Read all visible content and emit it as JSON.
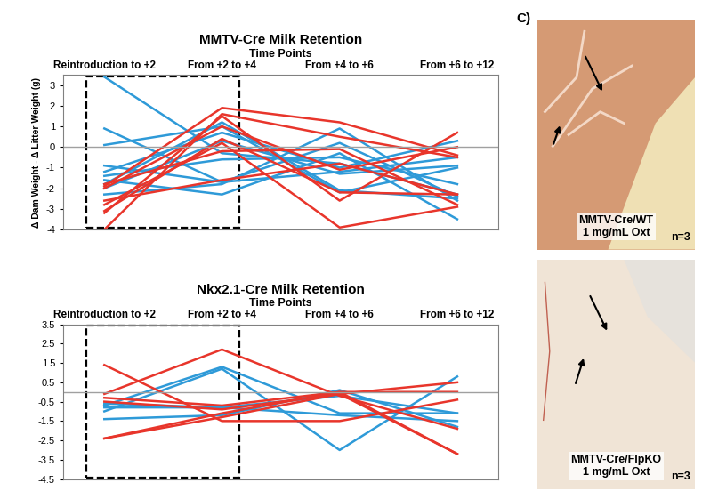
{
  "chart_data": [
    {
      "type": "line",
      "title": "MMTV-Cre Milk Retention",
      "x_label": "Time Points",
      "y_label": "Δ Dam Weight - Δ Litter Weight (g)",
      "categories": [
        "Reintroduction to +2",
        "From +2 to +4",
        "From +4 to +6",
        "From +6 to +12"
      ],
      "ylim": [
        -4,
        3.5
      ],
      "yticks": [
        -4,
        -3,
        -2,
        -1,
        0,
        1,
        2,
        3
      ],
      "series": [
        {
          "color": "#2e9ad8",
          "values": [
            3.4,
            -0.3,
            -0.8,
            -2.3
          ]
        },
        {
          "color": "#2e9ad8",
          "values": [
            0.9,
            -1.7,
            -1.2,
            -0.5
          ]
        },
        {
          "color": "#2e9ad8",
          "values": [
            0.1,
            1.0,
            -2.2,
            -1.0
          ]
        },
        {
          "color": "#2e9ad8",
          "values": [
            -0.9,
            -1.7,
            0.2,
            -2.4
          ]
        },
        {
          "color": "#2e9ad8",
          "values": [
            -1.2,
            0.7,
            -1.0,
            0.3
          ]
        },
        {
          "color": "#2e9ad8",
          "values": [
            -1.6,
            -2.3,
            -0.3,
            -3.5
          ]
        },
        {
          "color": "#2e9ad8",
          "values": [
            -2.0,
            0.3,
            -1.3,
            -0.9
          ]
        },
        {
          "color": "#2e9ad8",
          "values": [
            -1.8,
            1.2,
            -2.1,
            -2.5
          ]
        },
        {
          "color": "#2e9ad8",
          "values": [
            -2.3,
            -1.8,
            0.9,
            -2.6
          ]
        },
        {
          "color": "#2e9ad8",
          "values": [
            -1.4,
            -0.6,
            -0.5,
            -1.8
          ]
        },
        {
          "color": "#e8352b",
          "values": [
            -1.9,
            1.9,
            1.2,
            -0.4
          ]
        },
        {
          "color": "#e8352b",
          "values": [
            -4.0,
            1.6,
            0.5,
            -0.5
          ]
        },
        {
          "color": "#e8352b",
          "values": [
            -3.2,
            1.5,
            -2.6,
            0.7
          ]
        },
        {
          "color": "#e8352b",
          "values": [
            -2.8,
            0.2,
            -3.9,
            -2.9
          ]
        },
        {
          "color": "#e8352b",
          "values": [
            -2.6,
            -1.6,
            -0.8,
            -2.3
          ]
        },
        {
          "color": "#e8352b",
          "values": [
            -1.8,
            -0.2,
            -0.1,
            -2.8
          ]
        },
        {
          "color": "#e8352b",
          "values": [
            -3.1,
            0.4,
            -2.2,
            -2.3
          ]
        },
        {
          "color": "#e8352b",
          "values": [
            -2.0,
            1.0,
            -1.1,
            0.0
          ]
        }
      ]
    },
    {
      "type": "line",
      "title": "Nkx2.1-Cre Milk Retention",
      "x_label": "Time Points",
      "categories": [
        "Reintroduction to +2",
        "From +2 to +4",
        "From +4 to +6",
        "From +6 to +12"
      ],
      "ylim": [
        -4.5,
        3.5
      ],
      "yticks": [
        -4.5,
        -3.5,
        -2.5,
        -1.5,
        -0.5,
        0.5,
        1.5,
        2.5,
        3.5
      ],
      "series": [
        {
          "color": "#2e9ad8",
          "values": [
            -0.7,
            1.3,
            -1.1,
            -1.1
          ]
        },
        {
          "color": "#2e9ad8",
          "values": [
            -1.0,
            1.2,
            -3.0,
            0.8
          ]
        },
        {
          "color": "#2e9ad8",
          "values": [
            -1.4,
            -1.2,
            0.1,
            -1.8
          ]
        },
        {
          "color": "#2e9ad8",
          "values": [
            -0.8,
            -0.8,
            -0.2,
            -1.1
          ]
        },
        {
          "color": "#2e9ad8",
          "values": [
            -0.6,
            -0.8,
            -1.2,
            -1.5
          ]
        },
        {
          "color": "#e8352b",
          "values": [
            1.4,
            -1.5,
            -1.5,
            -0.4
          ]
        },
        {
          "color": "#e8352b",
          "values": [
            -0.1,
            2.2,
            -0.2,
            -1.9
          ]
        },
        {
          "color": "#e8352b",
          "values": [
            -2.4,
            -1.1,
            0.0,
            -3.2
          ]
        },
        {
          "color": "#e8352b",
          "values": [
            -2.4,
            -1.3,
            -0.1,
            0.5
          ]
        },
        {
          "color": "#e8352b",
          "values": [
            -0.3,
            -0.7,
            0.0,
            0.0
          ]
        },
        {
          "color": "#e8352b",
          "values": [
            -0.5,
            -0.9,
            -0.1,
            -3.2
          ]
        }
      ]
    }
  ],
  "panel_c": {
    "label": "C)",
    "images": [
      {
        "caption": [
          "MMTV-Cre/WT",
          "1 mg/mL Oxt"
        ],
        "n": "n=3"
      },
      {
        "caption": [
          "MMTV-Cre/FlpKO",
          "1 mg/mL Oxt"
        ],
        "n": "n=3"
      }
    ]
  }
}
